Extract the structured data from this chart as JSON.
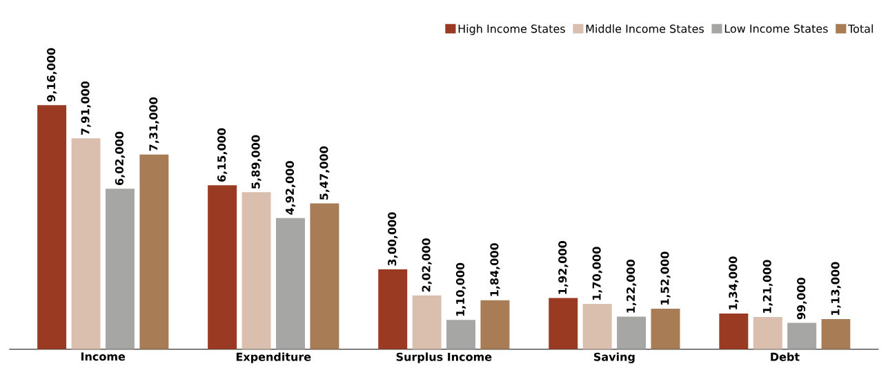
{
  "chart_data": {
    "type": "bar",
    "categories": [
      "Income",
      "Expenditure",
      "Surplus Income",
      "Saving",
      "Debt"
    ],
    "series": [
      {
        "name": "High Income States",
        "color": "#9b3a23",
        "values": [
          916000,
          615000,
          300000,
          192000,
          134000
        ],
        "value_labels": [
          "9,16,000",
          "6,15,000",
          "3,00,000",
          "1,92,000",
          "1,34,000"
        ]
      },
      {
        "name": "Middle Income States",
        "color": "#dbbfae",
        "values": [
          791000,
          589000,
          202000,
          170000,
          121000
        ],
        "value_labels": [
          "7,91,000",
          "5,89,000",
          "2,02,000",
          "1,70,000",
          "1,21,000"
        ]
      },
      {
        "name": "Low Income States",
        "color": "#a6a6a5",
        "values": [
          602000,
          492000,
          110000,
          122000,
          99000
        ],
        "value_labels": [
          "6,02,000",
          "4,92,000",
          "1,10,000",
          "1,22,000",
          "99,000"
        ]
      },
      {
        "name": "Total",
        "color": "#a87c54",
        "values": [
          731000,
          547000,
          184000,
          152000,
          113000
        ],
        "value_labels": [
          "7,31,000",
          "5,47,000",
          "1,84,000",
          "1,52,000",
          "1,13,000"
        ]
      }
    ],
    "legend": "top right"
  }
}
